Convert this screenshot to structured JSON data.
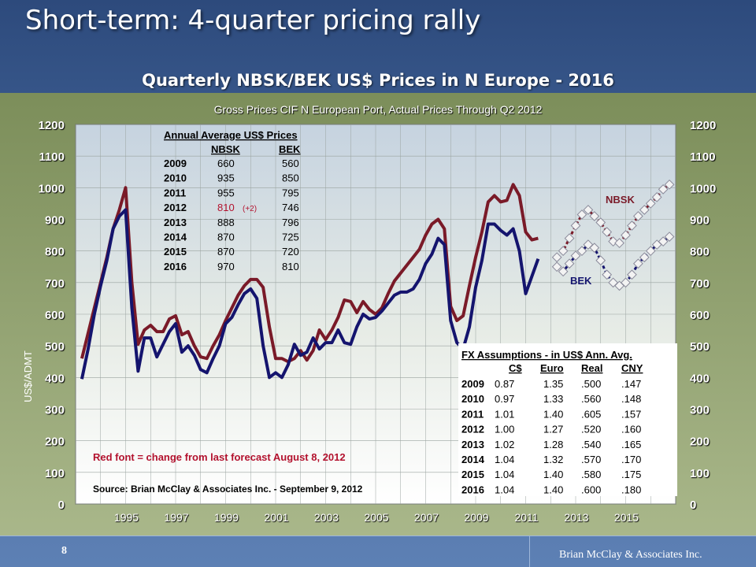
{
  "slide": {
    "title": "Short-term: 4-quarter pricing rally",
    "page_number": "8",
    "footer": "Brian McClay & Associates Inc."
  },
  "chart_data": {
    "type": "line",
    "title": "Quarterly NBSK/BEK US$ Prices in N Europe - 2016",
    "subtitle": "Gross Prices CIF N European Port, Actual Prices Through Q2 2012",
    "ylabel": "US$/ADMT",
    "ylim": [
      0,
      1200
    ],
    "yticks": [
      0,
      100,
      200,
      300,
      400,
      500,
      600,
      700,
      800,
      900,
      1000,
      1100,
      1200
    ],
    "xlim": [
      1993,
      2017
    ],
    "x_tick_labels": [
      "1995",
      "1997",
      "1999",
      "2001",
      "2003",
      "2005",
      "2007",
      "2009",
      "2011",
      "2013",
      "2015"
    ],
    "x_tick_values": [
      1995,
      1997,
      1999,
      2001,
      2003,
      2005,
      2007,
      2009,
      2011,
      2013,
      2015
    ],
    "grid": true,
    "series": [
      {
        "name": "NBSK",
        "color": "#7a1a28",
        "style": "actual",
        "x": [
          1993.25,
          1993.5,
          1993.75,
          1994.0,
          1994.25,
          1994.5,
          1994.75,
          1995.0,
          1995.25,
          1995.5,
          1995.75,
          1996.0,
          1996.25,
          1996.5,
          1996.75,
          1997.0,
          1997.25,
          1997.5,
          1997.75,
          1998.0,
          1998.25,
          1998.5,
          1998.75,
          1999.0,
          1999.25,
          1999.5,
          1999.75,
          2000.0,
          2000.25,
          2000.5,
          2000.75,
          2001.0,
          2001.25,
          2001.5,
          2001.75,
          2002.0,
          2002.25,
          2002.5,
          2002.75,
          2003.0,
          2003.25,
          2003.5,
          2003.75,
          2004.0,
          2004.25,
          2004.5,
          2004.75,
          2005.0,
          2005.25,
          2005.5,
          2005.75,
          2006.0,
          2006.25,
          2006.5,
          2006.75,
          2007.0,
          2007.25,
          2007.5,
          2007.75,
          2008.0,
          2008.25,
          2008.5,
          2008.75,
          2009.0,
          2009.25,
          2009.5,
          2009.75,
          2010.0,
          2010.25,
          2010.5,
          2010.75,
          2011.0,
          2011.25,
          2011.5,
          2011.75,
          2012.0,
          2012.25
        ],
        "values": [
          460,
          540,
          620,
          700,
          780,
          870,
          930,
          1000,
          700,
          505,
          550,
          565,
          545,
          545,
          585,
          595,
          535,
          545,
          500,
          465,
          460,
          500,
          535,
          580,
          620,
          660,
          690,
          710,
          710,
          685,
          560,
          460,
          460,
          450,
          460,
          485,
          455,
          485,
          550,
          520,
          550,
          590,
          645,
          640,
          605,
          640,
          615,
          600,
          620,
          665,
          705,
          730,
          755,
          780,
          805,
          850,
          885,
          900,
          870,
          625,
          580,
          595,
          690,
          780,
          860,
          955,
          975,
          955,
          960,
          1010,
          975,
          860,
          835,
          840,
          null,
          null,
          null
        ],
        "label": "NBSK"
      },
      {
        "name": "BEK",
        "color": "#14146e",
        "style": "actual",
        "x": [
          1993.25,
          1993.5,
          1993.75,
          1994.0,
          1994.25,
          1994.5,
          1994.75,
          1995.0,
          1995.25,
          1995.5,
          1995.75,
          1996.0,
          1996.25,
          1996.5,
          1996.75,
          1997.0,
          1997.25,
          1997.5,
          1997.75,
          1998.0,
          1998.25,
          1998.5,
          1998.75,
          1999.0,
          1999.25,
          1999.5,
          1999.75,
          2000.0,
          2000.25,
          2000.5,
          2000.75,
          2001.0,
          2001.25,
          2001.5,
          2001.75,
          2002.0,
          2002.25,
          2002.5,
          2002.75,
          2003.0,
          2003.25,
          2003.5,
          2003.75,
          2004.0,
          2004.25,
          2004.5,
          2004.75,
          2005.0,
          2005.25,
          2005.5,
          2005.75,
          2006.0,
          2006.25,
          2006.5,
          2006.75,
          2007.0,
          2007.25,
          2007.5,
          2007.75,
          2008.0,
          2008.25,
          2008.5,
          2008.75,
          2009.0,
          2009.25,
          2009.5,
          2009.75,
          2010.0,
          2010.25,
          2010.5,
          2010.75,
          2011.0,
          2011.25,
          2011.5,
          2011.75,
          2012.0,
          2012.25
        ],
        "values": [
          395,
          490,
          600,
          690,
          770,
          870,
          910,
          930,
          620,
          420,
          525,
          525,
          465,
          505,
          545,
          570,
          480,
          500,
          470,
          425,
          415,
          460,
          500,
          570,
          590,
          630,
          665,
          680,
          650,
          500,
          400,
          415,
          400,
          440,
          505,
          470,
          480,
          525,
          490,
          510,
          510,
          550,
          510,
          505,
          560,
          600,
          585,
          590,
          610,
          635,
          660,
          670,
          670,
          680,
          710,
          760,
          790,
          840,
          820,
          580,
          510,
          490,
          560,
          685,
          770,
          885,
          885,
          865,
          850,
          870,
          800,
          665,
          720,
          775,
          null,
          null,
          null
        ],
        "label": "BEK"
      },
      {
        "name": "NBSK",
        "color": "#7a1a28",
        "style": "forecast",
        "x": [
          2012.25,
          2012.5,
          2012.75,
          2013.0,
          2013.25,
          2013.5,
          2013.75,
          2014.0,
          2014.25,
          2014.5,
          2014.75,
          2015.0,
          2015.25,
          2015.5,
          2015.75,
          2016.0,
          2016.25,
          2016.5,
          2016.75
        ],
        "values": [
          780,
          800,
          840,
          880,
          915,
          930,
          910,
          890,
          860,
          830,
          825,
          850,
          880,
          910,
          930,
          950,
          970,
          995,
          1010
        ]
      },
      {
        "name": "BEK",
        "color": "#14146e",
        "style": "forecast",
        "x": [
          2012.25,
          2012.5,
          2012.75,
          2013.0,
          2013.25,
          2013.5,
          2013.75,
          2014.0,
          2014.25,
          2014.5,
          2014.75,
          2015.0,
          2015.25,
          2015.5,
          2015.75,
          2016.0,
          2016.25,
          2016.5,
          2016.75
        ],
        "values": [
          750,
          735,
          760,
          785,
          800,
          820,
          810,
          770,
          725,
          700,
          690,
          700,
          725,
          760,
          780,
          800,
          820,
          830,
          845
        ]
      }
    ],
    "annual_table": {
      "title": "Annual Average US$ Prices",
      "headers": [
        "",
        "NBSK",
        "BEK"
      ],
      "rows": [
        {
          "year": "2009",
          "nbsk": "660",
          "bek": "560",
          "note": ""
        },
        {
          "year": "2010",
          "nbsk": "935",
          "bek": "850",
          "note": ""
        },
        {
          "year": "2011",
          "nbsk": "955",
          "bek": "795",
          "note": ""
        },
        {
          "year": "2012",
          "nbsk": "810",
          "bek": "746",
          "note": "(+2)"
        },
        {
          "year": "2013",
          "nbsk": "888",
          "bek": "796",
          "note": ""
        },
        {
          "year": "2014",
          "nbsk": "870",
          "bek": "725",
          "note": ""
        },
        {
          "year": "2015",
          "nbsk": "870",
          "bek": "720",
          "note": ""
        },
        {
          "year": "2016",
          "nbsk": "970",
          "bek": "810",
          "note": ""
        }
      ]
    },
    "fx_table": {
      "title": "FX Assumptions - in US$ Ann. Avg.",
      "headers": [
        "",
        "C$",
        "Euro",
        "Real",
        "CNY"
      ],
      "rows": [
        [
          "2009",
          "0.87",
          "1.35",
          ".500",
          ".147"
        ],
        [
          "2010",
          "0.97",
          "1.33",
          ".560",
          ".148"
        ],
        [
          "2011",
          "1.01",
          "1.40",
          ".605",
          ".157"
        ],
        [
          "2012",
          "1.00",
          "1.27",
          ".520",
          ".160"
        ],
        [
          "2013",
          "1.02",
          "1.28",
          ".540",
          ".165"
        ],
        [
          "2014",
          "1.04",
          "1.32",
          ".570",
          ".170"
        ],
        [
          "2015",
          "1.04",
          "1.40",
          ".580",
          ".175"
        ],
        [
          "2016",
          "1.04",
          "1.40",
          ".600",
          ".180"
        ]
      ]
    },
    "annotations": {
      "red_note": "Red font = change from last forecast  August 8, 2012",
      "source": "Source:  Brian McClay & Associates Inc. - September 9, 2012",
      "nbsk_label": "NBSK",
      "bek_label": "BEK"
    }
  }
}
